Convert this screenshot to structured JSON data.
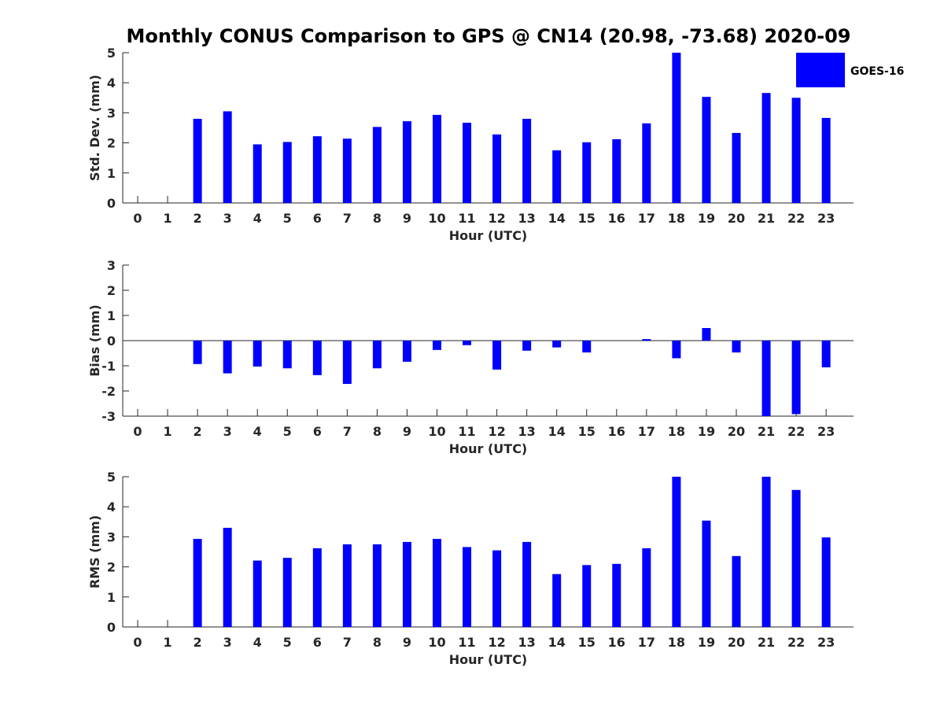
{
  "chart_data": {
    "title": "Monthly CONUS Comparison to GPS @ CN14 (20.98, -73.68) 2020-09",
    "bar_color": "#0000ff",
    "legend": {
      "label": "GOES-16",
      "placement": "top-right"
    },
    "panels": [
      {
        "type": "bar",
        "ylabel": "Std. Dev. (mm)",
        "xlabel": "Hour (UTC)",
        "ylim": [
          0,
          5
        ],
        "yticks": [
          0,
          1,
          2,
          3,
          4,
          5
        ],
        "categories": [
          "0",
          "1",
          "2",
          "3",
          "4",
          "5",
          "6",
          "7",
          "8",
          "9",
          "10",
          "11",
          "12",
          "13",
          "14",
          "15",
          "16",
          "17",
          "18",
          "19",
          "20",
          "21",
          "22",
          "23"
        ],
        "series": [
          {
            "name": "GOES-16",
            "values": [
              null,
              null,
              2.8,
              3.05,
              1.95,
              2.03,
              2.22,
              2.14,
              2.53,
              2.72,
              2.93,
              2.67,
              2.28,
              2.8,
              1.75,
              2.02,
              2.12,
              2.65,
              5.0,
              3.53,
              2.33,
              3.66,
              3.5,
              2.83
            ]
          }
        ]
      },
      {
        "type": "bar",
        "ylabel": "Bias (mm)",
        "xlabel": "Hour (UTC)",
        "ylim": [
          -3,
          3
        ],
        "yticks": [
          -3,
          -2,
          -1,
          0,
          1,
          2,
          3
        ],
        "categories": [
          "0",
          "1",
          "2",
          "3",
          "4",
          "5",
          "6",
          "7",
          "8",
          "9",
          "10",
          "11",
          "12",
          "13",
          "14",
          "15",
          "16",
          "17",
          "18",
          "19",
          "20",
          "21",
          "22",
          "23"
        ],
        "series": [
          {
            "name": "GOES-16",
            "values": [
              null,
              null,
              -0.93,
              -1.3,
              -1.03,
              -1.1,
              -1.37,
              -1.72,
              -1.1,
              -0.84,
              -0.37,
              -0.18,
              -1.15,
              -0.4,
              -0.27,
              -0.47,
              0.0,
              0.06,
              -0.7,
              0.5,
              -0.47,
              -3.0,
              -2.92,
              -1.06
            ]
          }
        ]
      },
      {
        "type": "bar",
        "ylabel": "RMS (mm)",
        "xlabel": "Hour (UTC)",
        "ylim": [
          0,
          5
        ],
        "yticks": [
          0,
          1,
          2,
          3,
          4,
          5
        ],
        "categories": [
          "0",
          "1",
          "2",
          "3",
          "4",
          "5",
          "6",
          "7",
          "8",
          "9",
          "10",
          "11",
          "12",
          "13",
          "14",
          "15",
          "16",
          "17",
          "18",
          "19",
          "20",
          "21",
          "22",
          "23"
        ],
        "series": [
          {
            "name": "GOES-16",
            "values": [
              null,
              null,
              2.93,
              3.3,
              2.21,
              2.3,
              2.62,
              2.75,
              2.75,
              2.83,
              2.93,
              2.66,
              2.55,
              2.83,
              1.76,
              2.06,
              2.1,
              2.62,
              5.0,
              3.54,
              2.36,
              5.0,
              4.56,
              2.98
            ]
          }
        ]
      }
    ]
  }
}
